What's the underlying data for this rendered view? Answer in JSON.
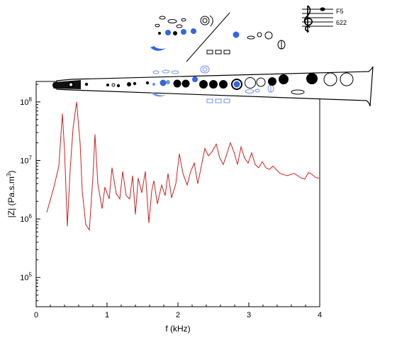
{
  "chart_data": {
    "type": "line",
    "xlabel": "f (kHz)",
    "ylabel_main": "|Z| (Pa.s.m",
    "ylabel_sup": "3",
    "ylabel_tail": ")",
    "xlim": [
      0,
      4
    ],
    "ylim_log10": [
      4.5,
      8.35
    ],
    "log_y": true,
    "grid": false,
    "x_ticks": [
      {
        "value": 0,
        "label": "0"
      },
      {
        "value": 1,
        "label": "1"
      },
      {
        "value": 2,
        "label": "2"
      },
      {
        "value": 3,
        "label": "3"
      },
      {
        "value": 4,
        "label": "4"
      }
    ],
    "y_ticks": [
      {
        "exp": 5,
        "base": "10",
        "sup": "5"
      },
      {
        "exp": 6,
        "base": "10",
        "sup": "6"
      },
      {
        "exp": 7,
        "base": "10",
        "sup": "7"
      },
      {
        "exp": 8,
        "base": "10",
        "sup": "8"
      }
    ],
    "series": [
      {
        "color": "#cc2020",
        "x": [
          0.15,
          0.25,
          0.32,
          0.37,
          0.4,
          0.44,
          0.48,
          0.52,
          0.57,
          0.62,
          0.65,
          0.7,
          0.75,
          0.8,
          0.83,
          0.87,
          0.93,
          0.97,
          1.03,
          1.07,
          1.13,
          1.18,
          1.22,
          1.27,
          1.32,
          1.36,
          1.4,
          1.44,
          1.49,
          1.54,
          1.59,
          1.63,
          1.66,
          1.71,
          1.77,
          1.82,
          1.86,
          1.91,
          1.97,
          2.02,
          2.07,
          2.13,
          2.18,
          2.23,
          2.28,
          2.33,
          2.38,
          2.43,
          2.48,
          2.54,
          2.59,
          2.64,
          2.69,
          2.74,
          2.79,
          2.84,
          2.89,
          2.94,
          2.99,
          3.04,
          3.09,
          3.14,
          3.19,
          3.24,
          3.29,
          3.34,
          3.44,
          3.54,
          3.64,
          3.69,
          3.74,
          3.79,
          3.84,
          3.89,
          3.94,
          3.99
        ],
        "y": [
          1300000.0,
          3500000.0,
          8000000.0,
          63000000.0,
          15000000.0,
          750000.0,
          7000000.0,
          35000000.0,
          100000000.0,
          20000000.0,
          3000000.0,
          800000.0,
          650000.0,
          5000000.0,
          28000000.0,
          4000000.0,
          1500000.0,
          3500000.0,
          2200000.0,
          7500000.0,
          2700000.0,
          2200000.0,
          6500000.0,
          2500000.0,
          2200000.0,
          5500000.0,
          1200000.0,
          5000000.0,
          2800000.0,
          6500000.0,
          850000.0,
          3000000.0,
          4500000.0,
          1800000.0,
          3800000.0,
          2500000.0,
          6000000.0,
          2300000.0,
          4000000.0,
          13000000.0,
          6000000.0,
          3800000.0,
          6500000.0,
          9000000.0,
          4000000.0,
          8000000.0,
          16000000.0,
          12000000.0,
          14000000.0,
          19000000.0,
          11000000.0,
          8500000.0,
          13000000.0,
          20000000.0,
          14000000.0,
          8500000.0,
          17000000.0,
          11000000.0,
          9000000.0,
          13500000.0,
          8500000.0,
          7500000.0,
          9500000.0,
          7500000.0,
          7000000.0,
          8000000.0,
          6000000.0,
          5500000.0,
          6000000.0,
          5500000.0,
          5000000.0,
          4800000.0,
          6200000.0,
          5800000.0,
          5100000.0,
          5000000.0
        ]
      }
    ]
  },
  "annotations": {
    "note_name": "F5",
    "frequency": "622"
  },
  "colors": {
    "curve": "#cc2020",
    "key_blue": "#3366dd",
    "key_light_blue": "#6f92e6",
    "ink": "#000000"
  },
  "icons": {
    "clef": "treble-clef-icon",
    "instrument": "clarinet-outline"
  }
}
